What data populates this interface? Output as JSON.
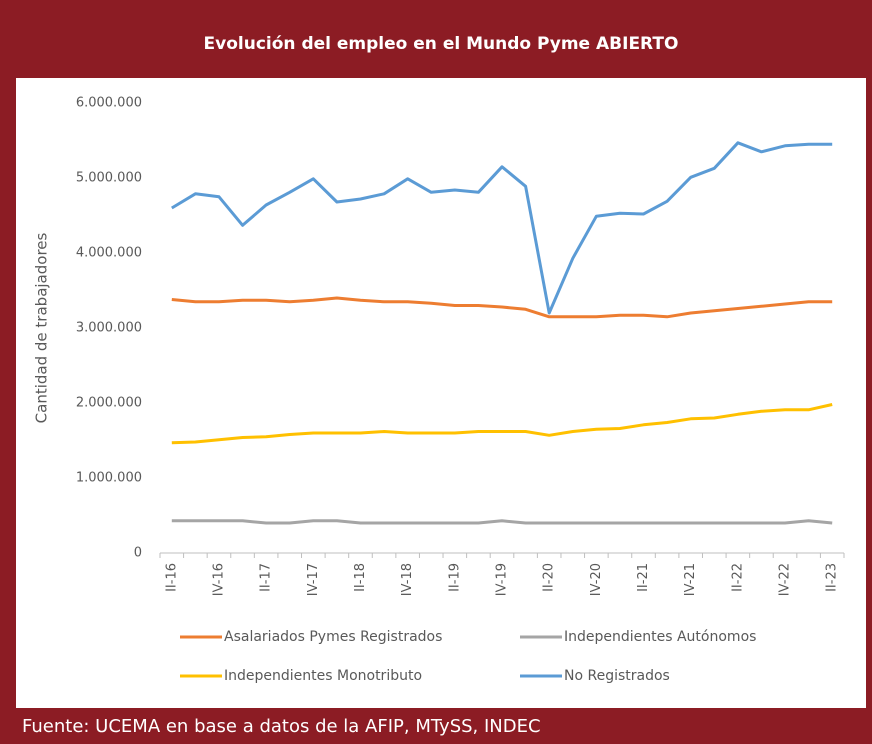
{
  "chart_data": {
    "type": "line",
    "title": "Evolución del empleo en el Mundo Pyme ABIERTO",
    "ylabel": "Cantidad  de trabajadores",
    "source": "Fuente: UCEMA en base a datos de la AFIP, MTySS, INDEC",
    "categories": [
      "II-16",
      null,
      "IV-16",
      null,
      "II-17",
      null,
      "IV-17",
      null,
      "II-18",
      null,
      "IV-18",
      null,
      "II-19",
      null,
      "IV-19",
      null,
      "II-20",
      null,
      "IV-20",
      null,
      "II-21",
      null,
      "IV-21",
      null,
      "II-22",
      null,
      "IV-22",
      null,
      "II-23"
    ],
    "series": [
      {
        "name": "Asalariados Pymes Registrados",
        "color": "#ed7d31",
        "values": [
          3380000,
          3350000,
          3350000,
          3370000,
          3370000,
          3350000,
          3370000,
          3400000,
          3370000,
          3350000,
          3350000,
          3330000,
          3300000,
          3300000,
          3280000,
          3250000,
          3150000,
          3150000,
          3150000,
          3170000,
          3170000,
          3150000,
          3200000,
          3230000,
          3260000,
          3290000,
          3320000,
          3350000,
          3350000
        ]
      },
      {
        "name": "Independientes Autónomos",
        "color": "#a5a5a5",
        "values": [
          430000,
          430000,
          430000,
          430000,
          400000,
          400000,
          430000,
          430000,
          400000,
          400000,
          400000,
          400000,
          400000,
          400000,
          430000,
          400000,
          400000,
          400000,
          400000,
          400000,
          400000,
          400000,
          400000,
          400000,
          400000,
          400000,
          400000,
          430000,
          400000
        ]
      },
      {
        "name": "Independientes Monotributo",
        "color": "#ffc000",
        "values": [
          1470000,
          1480000,
          1510000,
          1540000,
          1550000,
          1580000,
          1600000,
          1600000,
          1600000,
          1620000,
          1600000,
          1600000,
          1600000,
          1620000,
          1620000,
          1620000,
          1570000,
          1620000,
          1650000,
          1660000,
          1710000,
          1740000,
          1790000,
          1800000,
          1850000,
          1890000,
          1910000,
          1910000,
          1980000
        ]
      },
      {
        "name": "No Registrados",
        "color": "#5b9bd5",
        "values": [
          4600000,
          4790000,
          4750000,
          4370000,
          4640000,
          4810000,
          4990000,
          4680000,
          4720000,
          4790000,
          4990000,
          4810000,
          4840000,
          4810000,
          5150000,
          4890000,
          3200000,
          3930000,
          4490000,
          4530000,
          4520000,
          4690000,
          5010000,
          5130000,
          5470000,
          5350000,
          5430000,
          5450000,
          5450000
        ]
      }
    ],
    "ylim": [
      0,
      6000000
    ],
    "yticks": [
      0,
      {
        "value": 1000000,
        "label": "1.000.000"
      },
      {
        "value": 2000000,
        "label": "2.000.000"
      },
      {
        "value": 3000000,
        "label": "3.000.000"
      },
      {
        "value": 4000000,
        "label": "4.000.000"
      },
      {
        "value": 5000000,
        "label": "5.000.000"
      },
      {
        "value": 6000000,
        "label": "6.000.000"
      }
    ],
    "grid": false,
    "legend": "bottom"
  }
}
